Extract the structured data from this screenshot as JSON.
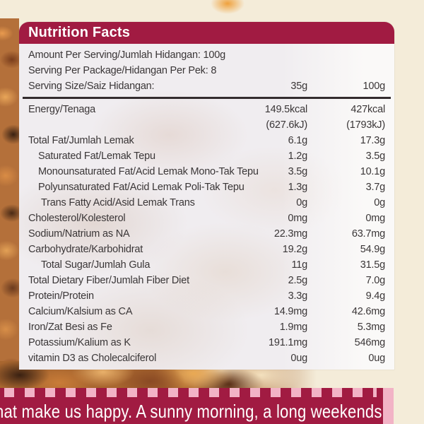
{
  "label": {
    "title": "Nutrition Facts",
    "serving_rows": [
      {
        "label": "Amount Per Serving/Jumlah Hidangan: 100g",
        "col1": "",
        "col2": "",
        "indent": 0
      },
      {
        "label": "Serving Per Package/Hidangan Per Pek: 8",
        "col1": "",
        "col2": "",
        "indent": 0
      },
      {
        "label": "Serving Size/Saiz Hidangan:",
        "col1": "35g",
        "col2": "100g",
        "indent": 0
      }
    ],
    "rows": [
      {
        "label": "Energy/Tenaga",
        "col1": "149.5kcal",
        "col2": "427kcal",
        "indent": 0
      },
      {
        "label": "",
        "col1": "(627.6kJ)",
        "col2": "(1793kJ)",
        "indent": 0
      },
      {
        "label": "Total Fat/Jumlah Lemak",
        "col1": "6.1g",
        "col2": "17.3g",
        "indent": 0
      },
      {
        "label": "Saturated Fat/Lemak Tepu",
        "col1": "1.2g",
        "col2": "3.5g",
        "indent": 1
      },
      {
        "label": "Monounsaturated Fat/Acid Lemak Mono-Tak Tepu",
        "col1": "3.5g",
        "col2": "10.1g",
        "indent": 1
      },
      {
        "label": "Polyunsaturated Fat/Acid Lemak Poli-Tak Tepu",
        "col1": "1.3g",
        "col2": "3.7g",
        "indent": 1
      },
      {
        "label": "Trans Fatty Acid/Asid Lemak Trans",
        "col1": "0g",
        "col2": "0g",
        "indent": 2
      },
      {
        "label": "Cholesterol/Kolesterol",
        "col1": "0mg",
        "col2": "0mg",
        "indent": 0
      },
      {
        "label": "Sodium/Natrium as NA",
        "col1": "22.3mg",
        "col2": "63.7mg",
        "indent": 0
      },
      {
        "label": "Carbohydrate/Karbohidrat",
        "col1": "19.2g",
        "col2": "54.9g",
        "indent": 0
      },
      {
        "label": "Total Sugar/Jumlah Gula",
        "col1": "11g",
        "col2": "31.5g",
        "indent": 2
      },
      {
        "label": "Total Dietary Fiber/Jumlah Fiber Diet",
        "col1": "2.5g",
        "col2": "7.0g",
        "indent": 0
      },
      {
        "label": "Protein/Protein",
        "col1": "3.3g",
        "col2": "9.4g",
        "indent": 0
      },
      {
        "label": "Calcium/Kalsium as CA",
        "col1": "14.9mg",
        "col2": "42.6mg",
        "indent": 0
      },
      {
        "label": "Iron/Zat Besi as Fe",
        "col1": "1.9mg",
        "col2": "5.3mg",
        "indent": 0
      },
      {
        "label": "Potassium/Kalium as K",
        "col1": "191.1mg",
        "col2": "546mg",
        "indent": 0
      },
      {
        "label": "vitamin D3 as Cholecalciferol",
        "col1": "0ug",
        "col2": "0ug",
        "indent": 0
      }
    ]
  },
  "banner": {
    "text": "hat make us happy. A sunny morning, a long weekends"
  },
  "colors": {
    "maroon": "#a11b42",
    "pink": "#f2b3c6",
    "cream": "#f4ecd9",
    "label_background": "#f0edf0",
    "text": "#3a3637",
    "banner_text": "#ffffff"
  }
}
